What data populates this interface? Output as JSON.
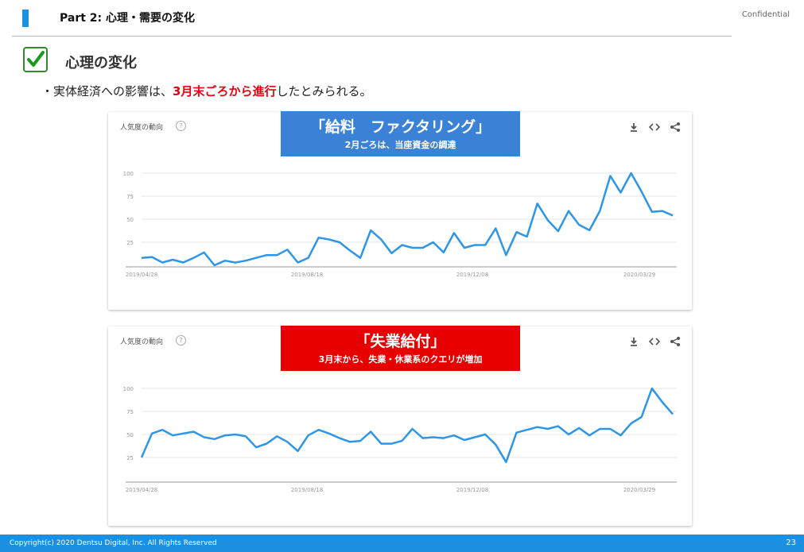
{
  "header": {
    "part_title": "Part 2:   心理・需要の変化",
    "confidential": "Confidential"
  },
  "section": {
    "title": "心理の変化",
    "bullet_pre": "・実体経済への影響は、",
    "bullet_highlight": "3月末ごろから進行",
    "bullet_post": "したとみられる。"
  },
  "panels": [
    {
      "label": "人気度の動向",
      "callout_title": "「給料　ファクタリング」",
      "callout_sub": "2月ごろは、当座資金の調達"
    },
    {
      "label": "人気度の動向",
      "callout_title": "「失業給付」",
      "callout_sub": "3月末から、失業・休業系のクエリが増加"
    }
  ],
  "chart_data": [
    {
      "type": "line",
      "title": "",
      "x_ticks": [
        "2019/04/28",
        "2019/08/18",
        "2019/12/08",
        "2020/03/29"
      ],
      "y_ticks": [
        25,
        50,
        75,
        100
      ],
      "ylim": [
        0,
        100
      ],
      "grid": true,
      "color": "#2e96e8",
      "values": [
        8,
        9,
        3,
        6,
        3,
        8,
        14,
        0,
        5,
        3,
        5,
        8,
        11,
        11,
        17,
        3,
        8,
        30,
        28,
        25,
        16,
        8,
        38,
        28,
        13,
        22,
        19,
        19,
        25,
        14,
        35,
        19,
        22,
        22,
        40,
        11,
        36,
        31,
        67,
        49,
        37,
        59,
        44,
        38,
        59,
        97,
        79,
        100,
        80,
        58,
        59,
        54
      ]
    },
    {
      "type": "line",
      "title": "",
      "x_ticks": [
        "2019/04/28",
        "2019/08/18",
        "2019/12/08",
        "2020/03/29"
      ],
      "y_ticks": [
        25,
        50,
        75,
        100
      ],
      "ylim": [
        0,
        100
      ],
      "grid": true,
      "color": "#2e96e8",
      "values": [
        25,
        51,
        55,
        49,
        51,
        53,
        47,
        45,
        49,
        50,
        48,
        36,
        40,
        48,
        42,
        32,
        49,
        55,
        51,
        46,
        42,
        43,
        53,
        40,
        40,
        43,
        56,
        46,
        47,
        46,
        49,
        44,
        47,
        50,
        39,
        20,
        52,
        55,
        58,
        56,
        59,
        50,
        57,
        49,
        56,
        56,
        49,
        62,
        69,
        100,
        85,
        72
      ]
    }
  ],
  "footer": {
    "copyright": "Copyright(c) 2020 Dentsu Digital, Inc. All Rights Reserved",
    "page_number": "23"
  }
}
